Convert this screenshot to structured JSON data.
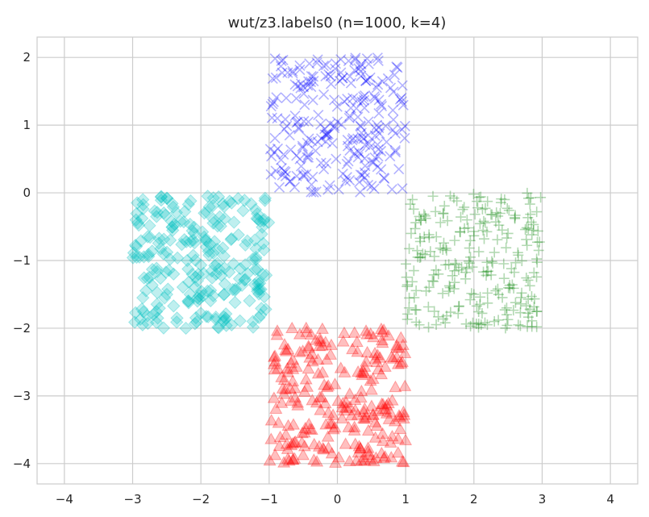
{
  "chart_data": {
    "type": "scatter",
    "title": "wut/z3.labels0 (n=1000, k=4)",
    "xlabel": "",
    "ylabel": "",
    "xlim": [
      -4.4,
      4.4
    ],
    "ylim": [
      -4.3,
      2.3
    ],
    "xticks": [
      -4,
      -3,
      -2,
      -1,
      0,
      1,
      2,
      3,
      4
    ],
    "yticks": [
      2,
      1,
      0,
      -1,
      -2,
      -3,
      -4
    ],
    "xtick_labels": [
      "−4",
      "−3",
      "−2",
      "−1",
      "0",
      "1",
      "2",
      "3",
      "4"
    ],
    "ytick_labels": [
      "2",
      "1",
      "0",
      "−1",
      "−2",
      "−3",
      "−4"
    ],
    "grid": true,
    "legend": "none",
    "series": [
      {
        "marker": "x",
        "color": "#0000ff",
        "count": 250,
        "region": {
          "x": [
            -1.0,
            1.0
          ],
          "y": [
            0.0,
            2.0
          ]
        },
        "points": [
          [
            -0.82,
            1.95
          ],
          [
            -0.55,
            1.88
          ],
          [
            -0.3,
            1.92
          ],
          [
            0.05,
            1.97
          ],
          [
            0.35,
            1.9
          ],
          [
            0.6,
            1.95
          ],
          [
            0.88,
            1.85
          ],
          [
            -0.9,
            1.7
          ],
          [
            -0.62,
            1.6
          ],
          [
            -0.35,
            1.65
          ],
          [
            -0.1,
            1.72
          ],
          [
            0.2,
            1.62
          ],
          [
            0.48,
            1.7
          ],
          [
            0.78,
            1.55
          ],
          [
            -0.75,
            1.4
          ],
          [
            -0.48,
            1.3
          ],
          [
            -0.2,
            1.45
          ],
          [
            0.1,
            1.35
          ],
          [
            0.38,
            1.42
          ],
          [
            0.65,
            1.28
          ],
          [
            0.92,
            1.38
          ],
          [
            -0.88,
            1.1
          ],
          [
            -0.58,
            1.05
          ],
          [
            -0.28,
            1.15
          ],
          [
            0.0,
            1.05
          ],
          [
            0.3,
            1.12
          ],
          [
            0.58,
            1.0
          ],
          [
            0.82,
            1.08
          ],
          [
            -0.7,
            0.85
          ],
          [
            -0.42,
            0.8
          ],
          [
            -0.15,
            0.88
          ],
          [
            0.15,
            0.78
          ],
          [
            0.45,
            0.85
          ],
          [
            0.72,
            0.75
          ],
          [
            -0.92,
            0.6
          ],
          [
            -0.6,
            0.55
          ],
          [
            -0.32,
            0.62
          ],
          [
            -0.02,
            0.5
          ],
          [
            0.25,
            0.58
          ],
          [
            0.55,
            0.52
          ],
          [
            0.85,
            0.6
          ],
          [
            -0.78,
            0.32
          ],
          [
            -0.5,
            0.25
          ],
          [
            -0.2,
            0.35
          ],
          [
            0.08,
            0.28
          ],
          [
            0.4,
            0.3
          ],
          [
            0.68,
            0.22
          ],
          [
            0.9,
            0.35
          ],
          [
            -0.85,
            0.08
          ],
          [
            -0.38,
            0.12
          ],
          [
            0.02,
            0.05
          ],
          [
            0.5,
            0.1
          ],
          [
            0.8,
            0.05
          ]
        ]
      },
      {
        "marker": "+",
        "color": "#008000",
        "count": 250,
        "region": {
          "x": [
            1.0,
            3.0
          ],
          "y": [
            -2.0,
            0.0
          ]
        },
        "points": [
          [
            1.1,
            -0.1
          ],
          [
            1.4,
            -0.05
          ],
          [
            1.75,
            -0.12
          ],
          [
            2.1,
            -0.06
          ],
          [
            2.45,
            -0.1
          ],
          [
            2.8,
            -0.08
          ],
          [
            1.2,
            -0.35
          ],
          [
            1.55,
            -0.3
          ],
          [
            1.9,
            -0.4
          ],
          [
            2.25,
            -0.32
          ],
          [
            2.6,
            -0.38
          ],
          [
            2.92,
            -0.28
          ],
          [
            1.08,
            -0.6
          ],
          [
            1.45,
            -0.65
          ],
          [
            1.8,
            -0.58
          ],
          [
            2.15,
            -0.68
          ],
          [
            2.5,
            -0.6
          ],
          [
            2.85,
            -0.62
          ],
          [
            1.25,
            -0.9
          ],
          [
            1.6,
            -0.85
          ],
          [
            1.95,
            -0.95
          ],
          [
            2.3,
            -0.88
          ],
          [
            2.65,
            -0.92
          ],
          [
            2.95,
            -0.85
          ],
          [
            1.12,
            -1.15
          ],
          [
            1.48,
            -1.2
          ],
          [
            1.82,
            -1.1
          ],
          [
            2.18,
            -1.22
          ],
          [
            2.55,
            -1.12
          ],
          [
            2.88,
            -1.18
          ],
          [
            1.3,
            -1.45
          ],
          [
            1.65,
            -1.4
          ],
          [
            2.0,
            -1.5
          ],
          [
            2.35,
            -1.42
          ],
          [
            2.7,
            -1.48
          ],
          [
            1.05,
            -1.7
          ],
          [
            1.42,
            -1.75
          ],
          [
            1.78,
            -1.68
          ],
          [
            2.12,
            -1.78
          ],
          [
            2.48,
            -1.7
          ],
          [
            2.82,
            -1.72
          ],
          [
            1.2,
            -1.95
          ],
          [
            1.58,
            -1.92
          ],
          [
            1.95,
            -1.97
          ],
          [
            2.3,
            -1.9
          ],
          [
            2.65,
            -1.95
          ],
          [
            2.92,
            -1.98
          ]
        ]
      },
      {
        "marker": "D",
        "color": "#00bfbf",
        "count": 250,
        "region": {
          "x": [
            -3.0,
            -1.0
          ],
          "y": [
            -2.0,
            0.0
          ]
        },
        "points": [
          [
            -2.85,
            -0.1
          ],
          [
            -2.5,
            -0.08
          ],
          [
            -2.15,
            -0.12
          ],
          [
            -1.9,
            -0.05
          ],
          [
            -1.55,
            -0.15
          ],
          [
            -2.95,
            -0.4
          ],
          [
            -2.65,
            -0.35
          ],
          [
            -2.3,
            -0.42
          ],
          [
            -1.95,
            -0.3
          ],
          [
            -1.65,
            -0.38
          ],
          [
            -1.2,
            -0.25
          ],
          [
            -2.78,
            -0.65
          ],
          [
            -2.45,
            -0.7
          ],
          [
            -2.1,
            -0.6
          ],
          [
            -1.8,
            -0.72
          ],
          [
            -1.45,
            -0.62
          ],
          [
            -2.9,
            -0.95
          ],
          [
            -2.55,
            -0.9
          ],
          [
            -2.2,
            -1.0
          ],
          [
            -1.88,
            -0.92
          ],
          [
            -1.52,
            -1.05
          ],
          [
            -2.75,
            -1.25
          ],
          [
            -2.4,
            -1.2
          ],
          [
            -2.05,
            -1.3
          ],
          [
            -1.7,
            -1.22
          ],
          [
            -1.35,
            -1.28
          ],
          [
            -2.85,
            -1.55
          ],
          [
            -2.5,
            -1.5
          ],
          [
            -2.18,
            -1.6
          ],
          [
            -1.82,
            -1.52
          ],
          [
            -1.5,
            -1.62
          ],
          [
            -2.7,
            -1.8
          ],
          [
            -2.35,
            -1.85
          ],
          [
            -2.0,
            -1.78
          ],
          [
            -1.65,
            -1.88
          ],
          [
            -1.05,
            -1.72
          ],
          [
            -2.22,
            -2.0
          ],
          [
            -1.55,
            -1.95
          ]
        ]
      },
      {
        "marker": "^",
        "color": "#ff0000",
        "count": 250,
        "region": {
          "x": [
            -1.0,
            1.0
          ],
          "y": [
            -4.0,
            -2.0
          ]
        },
        "points": [
          [
            -0.88,
            -2.05
          ],
          [
            -0.55,
            -2.1
          ],
          [
            -0.22,
            -2.02
          ],
          [
            0.1,
            -2.08
          ],
          [
            0.42,
            -2.05
          ],
          [
            0.75,
            -2.12
          ],
          [
            -0.75,
            -2.35
          ],
          [
            -0.42,
            -2.3
          ],
          [
            -0.1,
            -2.4
          ],
          [
            0.22,
            -2.32
          ],
          [
            0.55,
            -2.38
          ],
          [
            0.9,
            -2.3
          ],
          [
            -0.92,
            -2.62
          ],
          [
            -0.6,
            -2.58
          ],
          [
            -0.28,
            -2.68
          ],
          [
            0.05,
            -2.6
          ],
          [
            0.38,
            -2.65
          ],
          [
            0.7,
            -2.58
          ],
          [
            -0.8,
            -2.9
          ],
          [
            -0.48,
            -2.95
          ],
          [
            -0.15,
            -2.88
          ],
          [
            0.18,
            -2.98
          ],
          [
            0.5,
            -2.92
          ],
          [
            0.85,
            -2.88
          ],
          [
            -0.9,
            -3.2
          ],
          [
            -0.58,
            -3.15
          ],
          [
            -0.25,
            -3.22
          ],
          [
            0.08,
            -3.12
          ],
          [
            0.4,
            -3.2
          ],
          [
            0.72,
            -3.15
          ],
          [
            -0.72,
            -3.45
          ],
          [
            -0.4,
            -3.5
          ],
          [
            -0.08,
            -3.42
          ],
          [
            0.25,
            -3.52
          ],
          [
            0.58,
            -3.45
          ],
          [
            0.92,
            -3.5
          ],
          [
            -0.85,
            -3.75
          ],
          [
            -0.52,
            -3.7
          ],
          [
            -0.2,
            -3.8
          ],
          [
            0.12,
            -3.72
          ],
          [
            0.45,
            -3.78
          ],
          [
            0.78,
            -3.7
          ],
          [
            -0.65,
            -3.95
          ],
          [
            -0.3,
            -3.98
          ],
          [
            0.02,
            -3.92
          ],
          [
            0.35,
            -3.97
          ],
          [
            0.68,
            -3.93
          ],
          [
            0.95,
            -3.98
          ]
        ]
      }
    ]
  }
}
